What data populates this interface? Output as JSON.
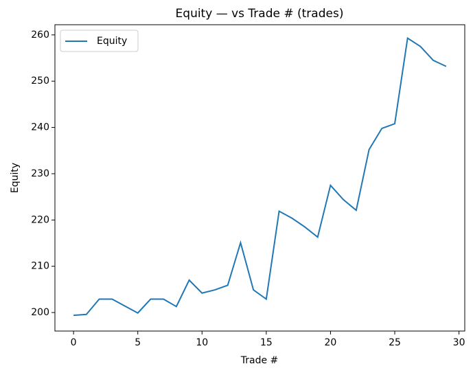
{
  "chart_data": {
    "type": "line",
    "title": "Equity — vs Trade # (trades)",
    "x_label": "Trade #",
    "y_label": "Equity",
    "x": [
      0,
      1,
      2,
      3,
      4,
      5,
      6,
      7,
      8,
      9,
      10,
      11,
      12,
      13,
      14,
      15,
      16,
      17,
      18,
      19,
      20,
      21,
      22,
      23,
      24,
      25,
      26,
      27,
      28,
      29
    ],
    "series": [
      {
        "name": "Equity",
        "color": "#1f77b4",
        "values": [
          199.4,
          199.6,
          202.9,
          202.9,
          201.4,
          199.9,
          202.9,
          202.9,
          201.3,
          207.0,
          204.2,
          204.9,
          205.9,
          215.1,
          204.9,
          202.9,
          221.9,
          220.4,
          218.5,
          216.3,
          227.5,
          224.4,
          222.1,
          235.2,
          239.8,
          240.8,
          259.3,
          257.5,
          254.5,
          253.2
        ]
      }
    ],
    "xlim": [
      -1.45,
      30.45
    ],
    "xticks": [
      0,
      5,
      10,
      15,
      20,
      25,
      30
    ],
    "ylim": [
      196.0,
      262.2
    ],
    "yticks": [
      200,
      210,
      220,
      230,
      240,
      250,
      260
    ],
    "legend": "upper left"
  }
}
